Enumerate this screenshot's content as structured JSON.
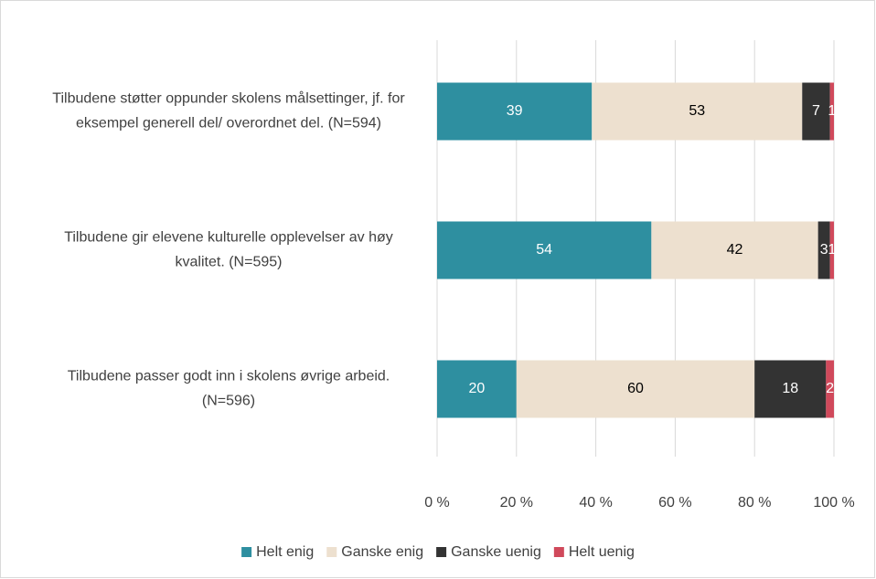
{
  "chart_data": {
    "type": "stacked-bar-horizontal",
    "categories": [
      "Tilbudene støtter oppunder skolens målsettinger, jf. for eksempel generell del/ overordnet del. (N=594)",
      "Tilbudene gir elevene kulturelle opplevelser av høy kvalitet. (N=595)",
      "Tilbudene passer godt inn i skolens øvrige arbeid. (N=596)"
    ],
    "series": [
      {
        "name": "Helt enig",
        "color": "#2e8fa0",
        "values": [
          39,
          54,
          20
        ]
      },
      {
        "name": "Ganske enig",
        "color": "#ede0cf",
        "values": [
          53,
          42,
          60
        ]
      },
      {
        "name": "Ganske uenig",
        "color": "#333333",
        "values": [
          7,
          3,
          18
        ]
      },
      {
        "name": "Helt uenig",
        "color": "#d0495b",
        "values": [
          1,
          1,
          2
        ]
      }
    ],
    "xlim": [
      0,
      100
    ],
    "xticks": [
      {
        "value": 0,
        "label": "0 %"
      },
      {
        "value": 20,
        "label": "20 %"
      },
      {
        "value": 40,
        "label": "40 %"
      },
      {
        "value": 60,
        "label": "60 %"
      },
      {
        "value": 80,
        "label": "80 %"
      },
      {
        "value": 100,
        "label": "100 %"
      }
    ],
    "grid": true,
    "legend": "bottom"
  }
}
